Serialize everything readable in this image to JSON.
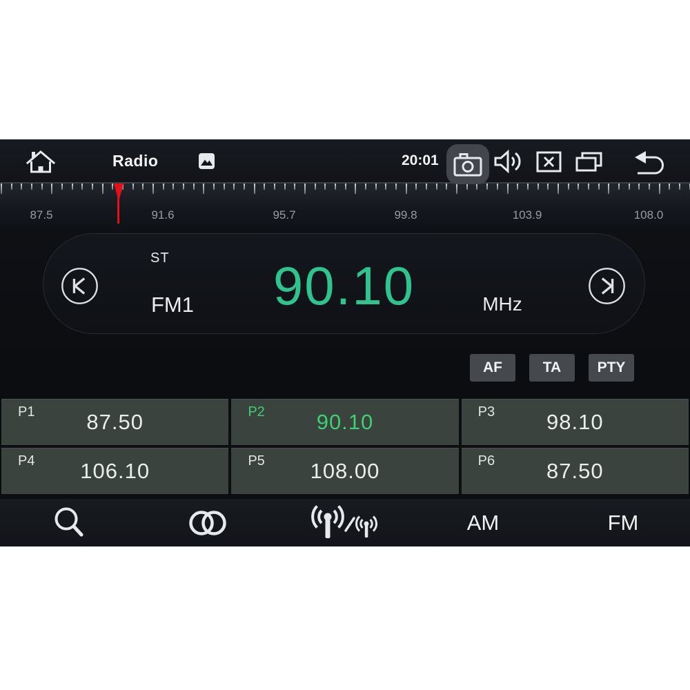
{
  "header": {
    "title": "Radio",
    "time": "20:01"
  },
  "scale": {
    "labels": [
      "87.5",
      "91.6",
      "95.7",
      "99.8",
      "103.9",
      "108.0"
    ],
    "min_mhz": 87.5,
    "max_mhz": 108.0,
    "tuned_mhz": 90.1
  },
  "display": {
    "stereo_indicator": "ST",
    "band": "FM1",
    "frequency": "90.10",
    "unit": "MHz"
  },
  "rds_buttons": [
    {
      "label": "AF"
    },
    {
      "label": "TA"
    },
    {
      "label": "PTY"
    }
  ],
  "presets": [
    {
      "id": "P1",
      "freq": "87.50",
      "active": false
    },
    {
      "id": "P2",
      "freq": "90.10",
      "active": true
    },
    {
      "id": "P3",
      "freq": "98.10",
      "active": false
    },
    {
      "id": "P4",
      "freq": "106.10",
      "active": false
    },
    {
      "id": "P5",
      "freq": "108.00",
      "active": false
    },
    {
      "id": "P6",
      "freq": "87.50",
      "active": false
    }
  ],
  "toolbar": {
    "am_label": "AM",
    "fm_label": "FM"
  },
  "icons": {
    "header": [
      "home-icon",
      "photo-icon",
      "camera-icon",
      "volume-icon",
      "close-app-icon",
      "recent-apps-icon",
      "back-icon"
    ],
    "display": [
      "seek-previous-icon",
      "seek-next-icon"
    ],
    "toolbar": [
      "search-icon",
      "stereo-circles-icon",
      "dx-loc-antenna-icon"
    ]
  },
  "colors": {
    "frequency_green": "#2fc48e",
    "preset_green": "#3ecf70",
    "needle_red": "#e31019",
    "screen_background": "#0b0d11",
    "preset_cell": "#3a433e"
  }
}
